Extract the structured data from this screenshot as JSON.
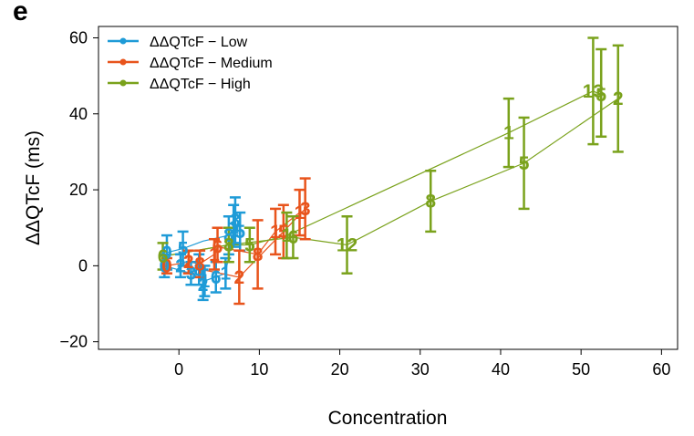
{
  "panel_label": "e",
  "chart_data": {
    "type": "scatter",
    "title": "",
    "xlabel": "Concentration",
    "ylabel": "ΔΔQTcF (ms)",
    "xlim": [
      -10,
      62
    ],
    "ylim": [
      -22,
      63
    ],
    "xticks": [
      0,
      10,
      20,
      30,
      40,
      50,
      60
    ],
    "yticks": [
      -20,
      0,
      20,
      40,
      60
    ],
    "legend_position": "top-left",
    "series": [
      {
        "name": "ΔΔQTcF − Low",
        "color": "#1f9bd7",
        "points": [
          {
            "label": "0",
            "x": -1.5,
            "y": 3.5,
            "lo": -1,
            "hi": 8
          },
          {
            "label": "5",
            "x": 0.5,
            "y": 4.5,
            "lo": 0,
            "hi": 9
          },
          {
            "label": "0",
            "x": -1.8,
            "y": 0,
            "lo": -3,
            "hi": 3
          },
          {
            "label": "2",
            "x": 0.2,
            "y": 0,
            "lo": -3,
            "hi": 3
          },
          {
            "label": "3",
            "x": 1.5,
            "y": -2,
            "lo": -5,
            "hi": 1
          },
          {
            "label": "8",
            "x": 2.5,
            "y": -1,
            "lo": -5,
            "hi": 3
          },
          {
            "label": "1",
            "x": 3.2,
            "y": -4,
            "lo": -8,
            "hi": 0
          },
          {
            "label": "2",
            "x": 3.0,
            "y": -5,
            "lo": -9,
            "hi": -1
          },
          {
            "label": "6",
            "x": 4.6,
            "y": -3,
            "lo": -7,
            "hi": 1
          },
          {
            "label": "1",
            "x": 5.8,
            "y": -2,
            "lo": -6,
            "hi": 2
          },
          {
            "label": "8",
            "x": 6.2,
            "y": 8,
            "lo": 3,
            "hi": 13
          },
          {
            "label": "1",
            "x": 6.8,
            "y": 10,
            "lo": 5,
            "hi": 16
          },
          {
            "label": "5",
            "x": 7.6,
            "y": 9,
            "lo": 4,
            "hi": 14
          },
          {
            "label": "3",
            "x": 7.0,
            "y": 12,
            "lo": 6,
            "hi": 18
          }
        ],
        "lines": [
          [
            [
              -1.5,
              3.5
            ],
            [
              0.5,
              4.5
            ],
            [
              3.0,
              6.5
            ],
            [
              6.2,
              8
            ]
          ],
          [
            [
              -1.8,
              0
            ],
            [
              1.5,
              -2
            ],
            [
              3.2,
              -4
            ],
            [
              5.8,
              -2
            ],
            [
              7.0,
              12
            ]
          ]
        ]
      },
      {
        "name": "ΔΔQTcF − Medium",
        "color": "#e8541c",
        "points": [
          {
            "label": "0",
            "x": -1.5,
            "y": 0,
            "lo": -2,
            "hi": 2
          },
          {
            "label": "2",
            "x": 1.2,
            "y": 1,
            "lo": -2,
            "hi": 4
          },
          {
            "label": "8",
            "x": 2.6,
            "y": 0.5,
            "lo": -3,
            "hi": 4
          },
          {
            "label": "1",
            "x": 4.4,
            "y": 3,
            "lo": -1,
            "hi": 7
          },
          {
            "label": "6",
            "x": 4.8,
            "y": 5,
            "lo": 1,
            "hi": 10
          },
          {
            "label": "2",
            "x": 7.5,
            "y": -3,
            "lo": -10,
            "hi": 4
          },
          {
            "label": "8",
            "x": 9.8,
            "y": 3,
            "lo": -6,
            "hi": 12
          },
          {
            "label": "1",
            "x": 12.0,
            "y": 9,
            "lo": 3,
            "hi": 15
          },
          {
            "label": "5",
            "x": 13.0,
            "y": 9,
            "lo": 2,
            "hi": 16
          },
          {
            "label": "1",
            "x": 15.0,
            "y": 14,
            "lo": 8,
            "hi": 20
          },
          {
            "label": "3",
            "x": 15.7,
            "y": 15,
            "lo": 7,
            "hi": 23
          }
        ],
        "lines": [
          [
            [
              -1.5,
              0
            ],
            [
              1.2,
              1
            ],
            [
              2.6,
              0.5
            ],
            [
              4.4,
              3
            ],
            [
              4.8,
              5
            ],
            [
              9.8,
              3
            ],
            [
              12.0,
              9
            ],
            [
              15.0,
              14
            ]
          ],
          [
            [
              0.5,
              0
            ],
            [
              7.5,
              -3
            ],
            [
              13.0,
              9
            ],
            [
              15.7,
              15
            ]
          ]
        ]
      },
      {
        "name": "ΔΔQTcF − High",
        "color": "#7aa21c",
        "points": [
          {
            "label": "6",
            "x": -2.0,
            "y": 2.5,
            "lo": -1,
            "hi": 6
          },
          {
            "label": "8",
            "x": 6.2,
            "y": 5.5,
            "lo": 1,
            "hi": 10
          },
          {
            "label": "5",
            "x": 8.8,
            "y": 5.5,
            "lo": 1,
            "hi": 10
          },
          {
            "label": "1",
            "x": 13.4,
            "y": 8,
            "lo": 2,
            "hi": 14
          },
          {
            "label": "6",
            "x": 14.2,
            "y": 7.5,
            "lo": 2,
            "hi": 13
          },
          {
            "label": "12",
            "x": 20.9,
            "y": 5.5,
            "lo": -2,
            "hi": 13
          },
          {
            "label": "8",
            "x": 31.3,
            "y": 17,
            "lo": 9,
            "hi": 25
          },
          {
            "label": "1",
            "x": 41.0,
            "y": 35,
            "lo": 26,
            "hi": 44
          },
          {
            "label": "5",
            "x": 42.9,
            "y": 27,
            "lo": 15,
            "hi": 39
          },
          {
            "label": "13",
            "x": 51.5,
            "y": 46,
            "lo": 32,
            "hi": 60
          },
          {
            "label": "5",
            "x": 52.5,
            "y": 45,
            "lo": 34,
            "hi": 57
          },
          {
            "label": "2",
            "x": 54.6,
            "y": 44,
            "lo": 30,
            "hi": 58
          }
        ],
        "lines": [
          [
            [
              -2.0,
              2.5
            ],
            [
              6.2,
              5.5
            ],
            [
              8.8,
              5.5
            ],
            [
              13.4,
              8
            ],
            [
              41.0,
              35
            ],
            [
              51.5,
              46
            ],
            [
              52.5,
              45
            ]
          ],
          [
            [
              -2.0,
              2.5
            ],
            [
              6.2,
              5.5
            ],
            [
              14.2,
              7.5
            ],
            [
              20.9,
              5.5
            ],
            [
              31.3,
              17
            ],
            [
              42.9,
              27
            ],
            [
              54.6,
              44
            ]
          ]
        ]
      }
    ]
  }
}
